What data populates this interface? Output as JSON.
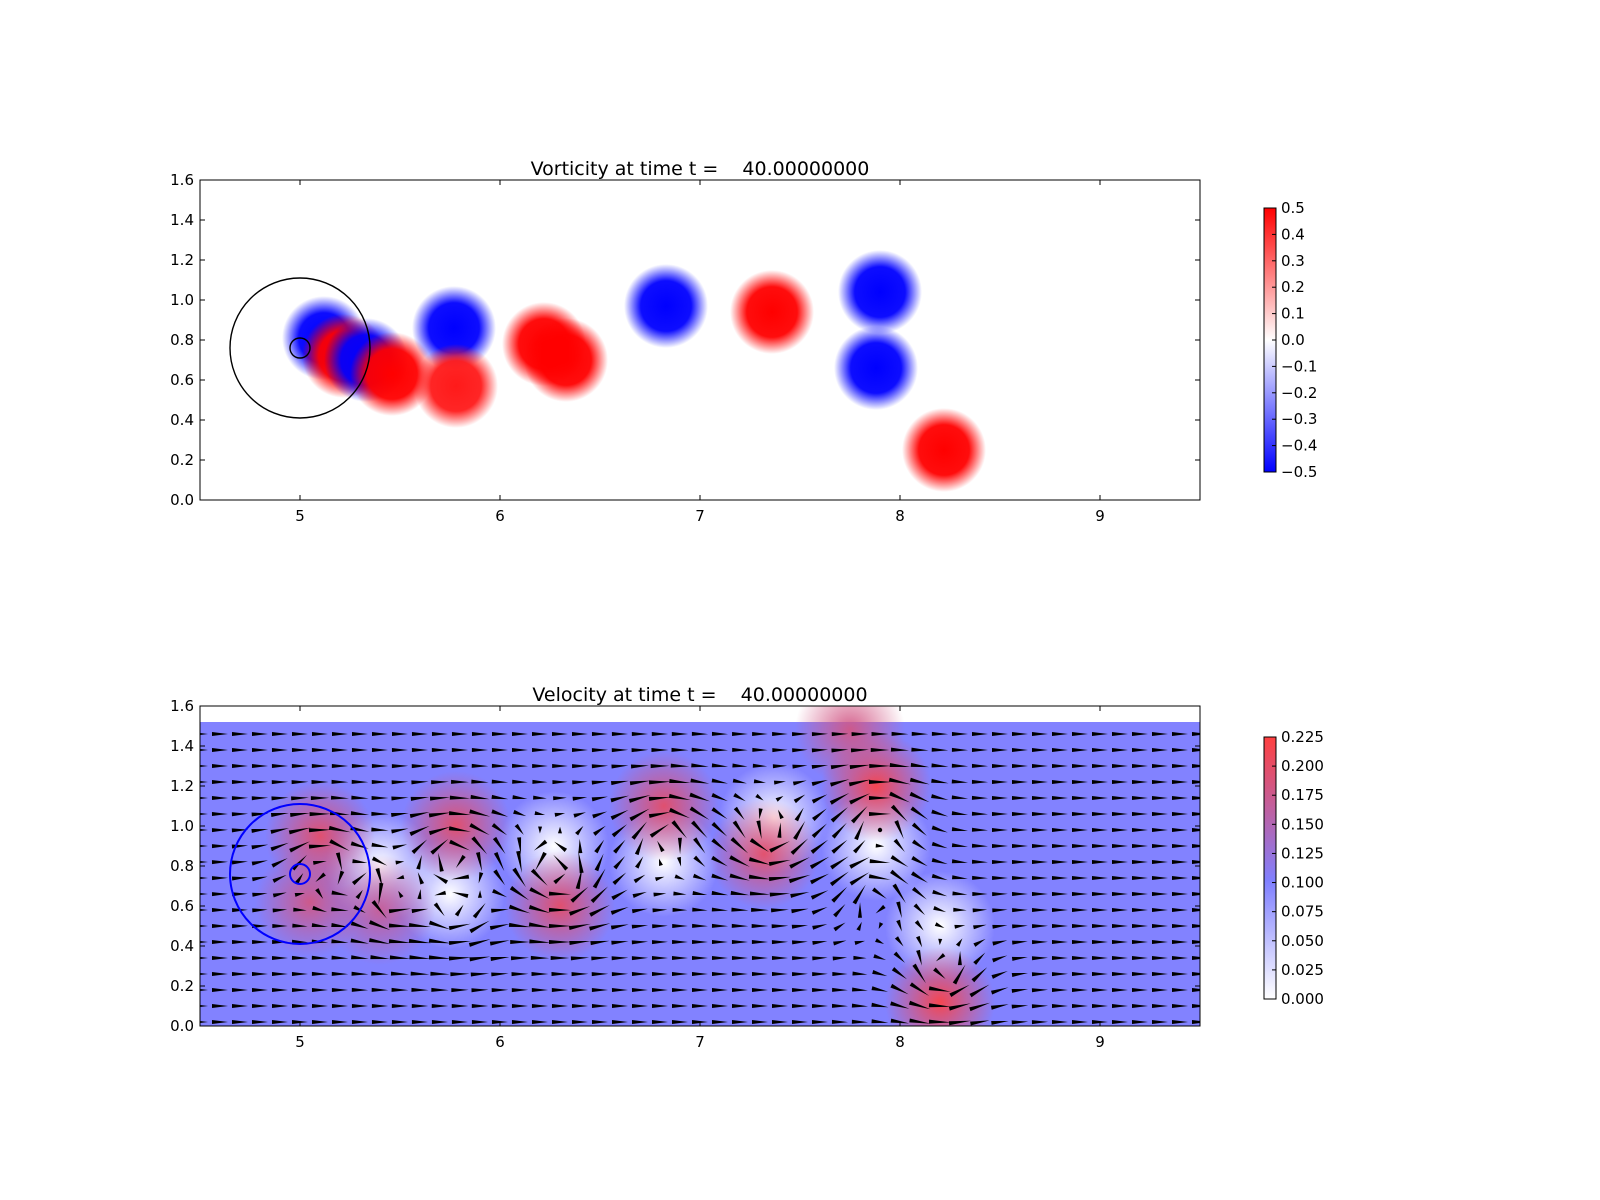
{
  "chart_data": [
    {
      "type": "heatmap",
      "title": "Vorticity at time t =    40.00000000",
      "xlabel": "",
      "ylabel": "",
      "xlim": [
        4.5,
        9.5
      ],
      "ylim": [
        0.0,
        1.6
      ],
      "xticks": [
        "5",
        "6",
        "7",
        "8",
        "9"
      ],
      "yticks": [
        "0.0",
        "0.2",
        "0.4",
        "0.6",
        "0.8",
        "1.0",
        "1.2",
        "1.4",
        "1.6"
      ],
      "colormap": {
        "min": -0.5,
        "max": 0.5,
        "low_color": "#0000ff",
        "mid_color": "#ffffff",
        "high_color": "#ff0000"
      },
      "colorbar_ticks": [
        "0.5",
        "0.4",
        "0.3",
        "0.2",
        "0.1",
        "0.0",
        "−0.1",
        "−0.2",
        "−0.3",
        "−0.4",
        "−0.5"
      ],
      "grid": false,
      "overlays": [
        {
          "shape": "circle",
          "cx": 5.0,
          "cy": 0.76,
          "r": 0.35,
          "color": "#000000"
        },
        {
          "shape": "circle",
          "cx": 5.0,
          "cy": 0.76,
          "r": 0.05,
          "color": "#000000"
        }
      ],
      "vortices": [
        {
          "x": 5.12,
          "y": 0.81,
          "w": -0.5
        },
        {
          "x": 5.22,
          "y": 0.72,
          "w": 0.5
        },
        {
          "x": 5.33,
          "y": 0.7,
          "w": -0.5
        },
        {
          "x": 5.46,
          "y": 0.63,
          "w": 0.5
        },
        {
          "x": 5.77,
          "y": 0.86,
          "w": -0.5
        },
        {
          "x": 5.78,
          "y": 0.57,
          "w": 0.45
        },
        {
          "x": 6.22,
          "y": 0.78,
          "w": 0.5
        },
        {
          "x": 6.33,
          "y": 0.7,
          "w": 0.5
        },
        {
          "x": 6.83,
          "y": 0.97,
          "w": -0.5
        },
        {
          "x": 7.36,
          "y": 0.94,
          "w": 0.5
        },
        {
          "x": 7.9,
          "y": 1.04,
          "w": -0.5
        },
        {
          "x": 7.88,
          "y": 0.66,
          "w": -0.5
        },
        {
          "x": 8.22,
          "y": 0.25,
          "w": 0.5
        }
      ]
    },
    {
      "type": "heatmap",
      "title": "Velocity at time t =    40.00000000",
      "xlabel": "",
      "ylabel": "",
      "xlim": [
        4.5,
        9.5
      ],
      "ylim": [
        0.0,
        1.6
      ],
      "xticks": [
        "5",
        "6",
        "7",
        "8",
        "9"
      ],
      "yticks": [
        "0.0",
        "0.2",
        "0.4",
        "0.6",
        "0.8",
        "1.0",
        "1.2",
        "1.4",
        "1.6"
      ],
      "colormap": {
        "min": 0.0,
        "max": 0.225,
        "low_color": "#ffffff",
        "mid_color": "#8080ff",
        "high_color": "#ff4040"
      },
      "colorbar_ticks": [
        "0.225",
        "0.200",
        "0.175",
        "0.150",
        "0.125",
        "0.100",
        "0.075",
        "0.050",
        "0.025",
        "0.000"
      ],
      "field_ymax": 1.52,
      "background_speed": 0.1,
      "grid": false,
      "quiver": true,
      "overlays": [
        {
          "shape": "circle",
          "cx": 5.0,
          "cy": 0.76,
          "r": 0.35,
          "color": "#0000ff"
        },
        {
          "shape": "circle",
          "cx": 5.0,
          "cy": 0.76,
          "r": 0.05,
          "color": "#0000ff"
        }
      ],
      "hotspots": [
        {
          "x": 5.1,
          "y": 0.95,
          "s": 0.2
        },
        {
          "x": 5.05,
          "y": 0.62,
          "s": 0.18
        },
        {
          "x": 5.4,
          "y": 0.58,
          "s": 0.17
        },
        {
          "x": 5.78,
          "y": 1.0,
          "s": 0.2
        },
        {
          "x": 6.3,
          "y": 0.6,
          "s": 0.2
        },
        {
          "x": 6.82,
          "y": 1.1,
          "s": 0.2
        },
        {
          "x": 7.32,
          "y": 0.86,
          "s": 0.2
        },
        {
          "x": 7.88,
          "y": 1.2,
          "s": 0.22
        },
        {
          "x": 7.75,
          "y": 1.48,
          "s": 0.18
        },
        {
          "x": 8.2,
          "y": 0.12,
          "s": 0.22
        }
      ],
      "calm_zones": [
        {
          "x": 5.4,
          "y": 0.8
        },
        {
          "x": 5.75,
          "y": 0.66
        },
        {
          "x": 6.27,
          "y": 0.9
        },
        {
          "x": 6.82,
          "y": 0.82
        },
        {
          "x": 7.37,
          "y": 1.04
        },
        {
          "x": 7.88,
          "y": 0.9
        },
        {
          "x": 8.2,
          "y": 0.5
        }
      ]
    }
  ]
}
